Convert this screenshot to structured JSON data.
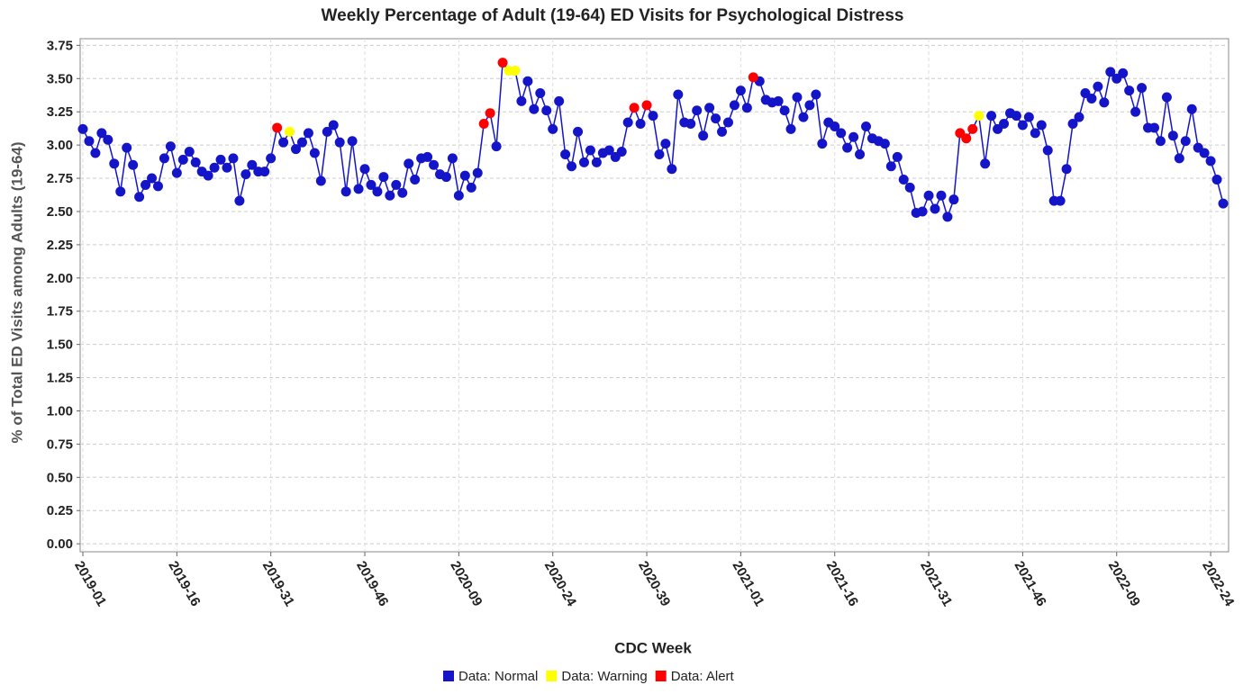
{
  "chart_data": {
    "type": "line",
    "title": "Weekly Percentage of Adult (19-64) ED Visits for Psychological Distress",
    "x_label": "CDC Week",
    "y_label": "% of Total ED Visits among Adults (19-64)",
    "categories": [
      "2019-01",
      null,
      null,
      null,
      null,
      null,
      null,
      null,
      null,
      null,
      null,
      null,
      null,
      null,
      null,
      "2019-16",
      null,
      null,
      null,
      null,
      null,
      null,
      null,
      null,
      null,
      null,
      null,
      null,
      null,
      null,
      "2019-31",
      null,
      null,
      null,
      null,
      null,
      null,
      null,
      null,
      null,
      null,
      null,
      null,
      null,
      null,
      "2019-46",
      null,
      null,
      null,
      null,
      null,
      null,
      null,
      null,
      null,
      null,
      null,
      null,
      null,
      null,
      "2020-09",
      null,
      null,
      null,
      null,
      null,
      null,
      null,
      null,
      null,
      null,
      null,
      null,
      null,
      null,
      "2020-24",
      null,
      null,
      null,
      null,
      null,
      null,
      null,
      null,
      null,
      null,
      null,
      null,
      null,
      null,
      "2020-39",
      null,
      null,
      null,
      null,
      null,
      null,
      null,
      null,
      null,
      null,
      null,
      null,
      null,
      null,
      "2021-01",
      null,
      null,
      null,
      null,
      null,
      null,
      null,
      null,
      null,
      null,
      null,
      null,
      null,
      null,
      "2021-16",
      null,
      null,
      null,
      null,
      null,
      null,
      null,
      null,
      null,
      null,
      null,
      null,
      null,
      null,
      "2021-31",
      null,
      null,
      null,
      null,
      null,
      null,
      null,
      null,
      null,
      null,
      null,
      null,
      null,
      null,
      "2021-46",
      null,
      null,
      null,
      null,
      null,
      null,
      null,
      null,
      null,
      null,
      null,
      null,
      null,
      null,
      "2022-09",
      null,
      null,
      null,
      null,
      null,
      null,
      null,
      null,
      null,
      null,
      null,
      null,
      null,
      null,
      "2022-24",
      null,
      null
    ],
    "series": [
      {
        "name": "Data: Normal",
        "color": "#1414c8",
        "values": [
          3.12,
          3.03,
          2.94,
          3.09,
          3.04,
          2.86,
          2.65,
          2.98,
          2.85,
          2.61,
          2.7,
          2.75,
          2.69,
          2.9,
          2.99,
          2.79,
          2.89,
          2.95,
          2.87,
          2.8,
          2.77,
          2.83,
          2.89,
          2.83,
          2.9,
          2.58,
          2.78,
          2.85,
          2.8,
          2.8,
          2.9,
          null,
          3.02,
          null,
          2.97,
          3.02,
          3.09,
          2.94,
          2.73,
          3.1,
          3.15,
          3.02,
          2.65,
          3.03,
          2.67,
          2.82,
          2.7,
          2.65,
          2.76,
          2.62,
          2.7,
          2.64,
          2.86,
          2.74,
          2.9,
          2.91,
          2.85,
          2.78,
          2.76,
          2.9,
          2.62,
          2.77,
          2.68,
          2.79,
          null,
          null,
          2.99,
          null,
          null,
          null,
          3.33,
          3.48,
          3.27,
          3.39,
          3.26,
          3.12,
          3.33,
          2.93,
          2.84,
          3.1,
          2.87,
          2.96,
          2.87,
          2.94,
          2.96,
          2.91,
          2.95,
          3.17,
          null,
          3.16,
          null,
          3.22,
          2.93,
          3.01,
          2.82,
          3.38,
          3.17,
          3.16,
          3.26,
          3.07,
          3.28,
          3.2,
          3.1,
          3.17,
          3.3,
          3.41,
          3.28,
          null,
          3.48,
          3.34,
          3.32,
          3.33,
          3.26,
          3.12,
          3.36,
          3.21,
          3.3,
          3.38,
          3.01,
          3.17,
          3.14,
          3.09,
          2.98,
          3.06,
          2.93,
          3.14,
          3.05,
          3.03,
          3.01,
          2.84,
          2.91,
          2.74,
          2.68,
          2.49,
          2.5,
          2.62,
          2.52,
          2.62,
          2.46,
          2.59,
          null,
          null,
          null,
          null,
          2.86,
          3.22,
          3.12,
          3.16,
          3.24,
          3.22,
          3.15,
          3.21,
          3.09,
          3.15,
          2.96,
          2.58,
          2.58,
          2.82,
          3.16,
          3.21,
          3.39,
          3.35,
          3.44,
          3.32,
          3.55,
          3.5,
          3.54,
          3.41,
          3.25,
          3.43,
          3.13,
          3.13,
          3.03,
          3.36,
          3.07,
          2.9,
          3.03,
          3.27,
          2.98,
          2.94,
          2.88,
          2.74,
          2.56
        ]
      },
      {
        "name": "Data: Warning",
        "color": "#ffff00",
        "values": [
          null,
          null,
          null,
          null,
          null,
          null,
          null,
          null,
          null,
          null,
          null,
          null,
          null,
          null,
          null,
          null,
          null,
          null,
          null,
          null,
          null,
          null,
          null,
          null,
          null,
          null,
          null,
          null,
          null,
          null,
          null,
          null,
          null,
          3.1,
          null,
          null,
          null,
          null,
          null,
          null,
          null,
          null,
          null,
          null,
          null,
          null,
          null,
          null,
          null,
          null,
          null,
          null,
          null,
          null,
          null,
          null,
          null,
          null,
          null,
          null,
          null,
          null,
          null,
          null,
          null,
          null,
          null,
          null,
          3.56,
          3.56,
          null,
          null,
          null,
          null,
          null,
          null,
          null,
          null,
          null,
          null,
          null,
          null,
          null,
          null,
          null,
          null,
          null,
          null,
          null,
          null,
          null,
          null,
          null,
          null,
          null,
          null,
          null,
          null,
          null,
          null,
          null,
          null,
          null,
          null,
          null,
          null,
          null,
          null,
          null,
          null,
          null,
          null,
          null,
          null,
          null,
          null,
          null,
          null,
          null,
          null,
          null,
          null,
          null,
          null,
          null,
          null,
          null,
          null,
          null,
          null,
          null,
          null,
          null,
          null,
          null,
          null,
          null,
          null,
          null,
          null,
          null,
          null,
          null,
          3.22,
          null,
          null,
          null,
          null,
          null,
          null,
          null,
          null,
          null,
          null,
          null,
          null,
          null,
          null,
          null,
          null,
          null,
          null,
          null,
          null,
          null,
          null,
          null,
          null,
          null,
          null,
          null,
          null,
          null,
          null,
          null,
          null,
          null,
          null,
          null,
          null,
          null,
          null,
          null
        ]
      },
      {
        "name": "Data: Alert",
        "color": "#ff0000",
        "values": [
          null,
          null,
          null,
          null,
          null,
          null,
          null,
          null,
          null,
          null,
          null,
          null,
          null,
          null,
          null,
          null,
          null,
          null,
          null,
          null,
          null,
          null,
          null,
          null,
          null,
          null,
          null,
          null,
          null,
          null,
          null,
          3.13,
          null,
          null,
          null,
          null,
          null,
          null,
          null,
          null,
          null,
          null,
          null,
          null,
          null,
          null,
          null,
          null,
          null,
          null,
          null,
          null,
          null,
          null,
          null,
          null,
          null,
          null,
          null,
          null,
          null,
          null,
          null,
          null,
          3.16,
          3.24,
          null,
          3.62,
          null,
          null,
          null,
          null,
          null,
          null,
          null,
          null,
          null,
          null,
          null,
          null,
          null,
          null,
          null,
          null,
          null,
          null,
          null,
          null,
          3.28,
          null,
          3.3,
          null,
          null,
          null,
          null,
          null,
          null,
          null,
          null,
          null,
          null,
          null,
          null,
          null,
          null,
          null,
          null,
          3.51,
          null,
          null,
          null,
          null,
          null,
          null,
          null,
          null,
          null,
          null,
          null,
          null,
          null,
          null,
          null,
          null,
          null,
          null,
          null,
          null,
          null,
          null,
          null,
          null,
          null,
          null,
          null,
          null,
          null,
          null,
          null,
          null,
          3.09,
          3.05,
          3.12,
          null,
          null,
          null,
          null,
          null,
          null,
          null,
          null,
          null,
          null,
          null,
          null,
          null,
          null,
          null,
          null,
          null,
          null,
          null,
          null,
          null,
          null,
          null,
          null,
          null,
          null,
          null,
          null,
          null,
          null,
          null,
          null,
          null,
          null,
          null,
          null,
          null,
          null,
          null,
          null
        ]
      }
    ],
    "ylim": [
      -0.06,
      3.8
    ],
    "yticks": [
      {
        "value": 0,
        "label": "0.00"
      },
      0.25,
      {
        "value": 0.5,
        "label": "0.50"
      },
      0.75,
      {
        "value": 1,
        "label": "1.00"
      },
      1.25,
      {
        "value": 1.5,
        "label": "1.50"
      },
      1.75,
      {
        "value": 2,
        "label": "2.00"
      },
      2.25,
      {
        "value": 2.5,
        "label": "2.50"
      },
      2.75,
      {
        "value": 3,
        "label": "3.00"
      },
      3.25,
      {
        "value": 3.5,
        "label": "3.50"
      },
      3.75
    ],
    "grid": true
  }
}
